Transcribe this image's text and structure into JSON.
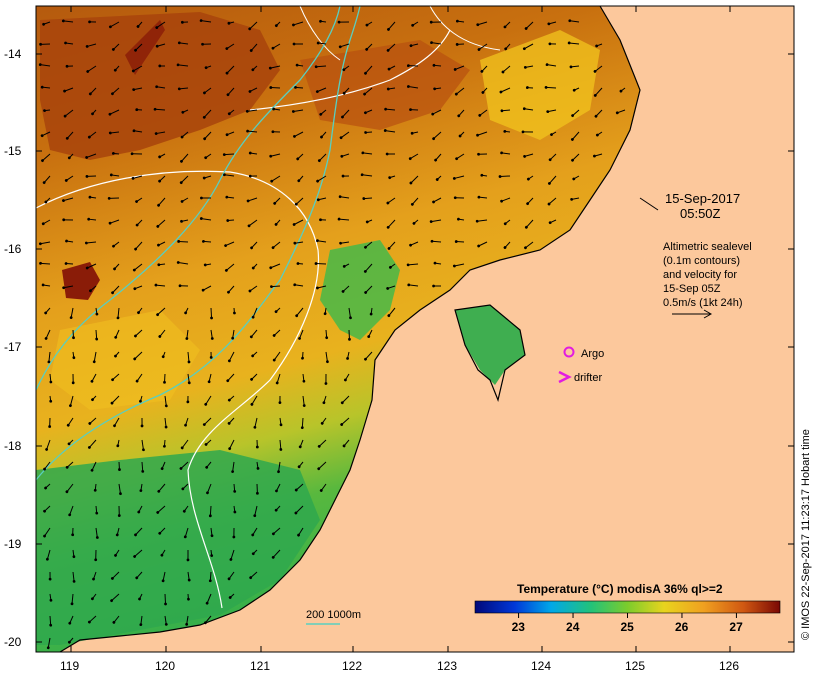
{
  "map": {
    "y_ticks": [
      "-14",
      "-15",
      "-16",
      "-17",
      "-18",
      "-19",
      "-20"
    ],
    "x_ticks": [
      "119",
      "120",
      "121",
      "122",
      "123",
      "124",
      "125",
      "126"
    ],
    "timestamp_date": "15-Sep-2017",
    "timestamp_time": "05:50Z",
    "legend_lines": [
      "Altimetric sealevel",
      "(0.1m contours)",
      "and velocity for",
      "15-Sep 05Z",
      "0.5m/s (1kt 24h)"
    ],
    "argo_label": "Argo",
    "drifter_label": "drifter",
    "bathy_label": "200  1000m",
    "colorbar_title": "Temperature (°C) modisA 36% ql>=2",
    "colorbar_ticks": [
      "23",
      "24",
      "25",
      "26",
      "27"
    ],
    "colorbar_range": [
      22.2,
      27.8
    ],
    "credit": "© IMOS 22-Sep-2017 11:23:17 Hobart time"
  },
  "colors": {
    "land": "#fcc89c",
    "warm_sea": "#e29a1d",
    "hot_sea": "#b6520c",
    "cool_sea": "#3fb548",
    "bathy": "#59cfc0",
    "argo": "#e21ce0",
    "drifter": "#e21ce0"
  }
}
